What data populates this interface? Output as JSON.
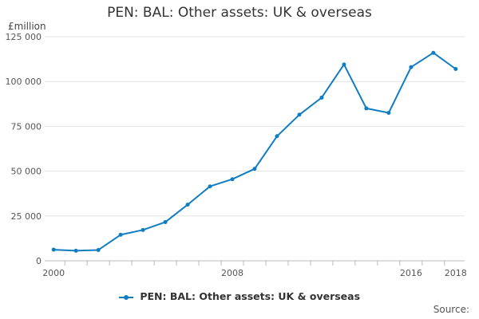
{
  "chart_data": {
    "type": "line",
    "title": "PEN: BAL: Other assets: UK & overseas",
    "y_unit": "£million",
    "x": [
      2000,
      2001,
      2002,
      2003,
      2004,
      2005,
      2006,
      2007,
      2008,
      2009,
      2010,
      2011,
      2012,
      2013,
      2014,
      2015,
      2016,
      2017,
      2018
    ],
    "x_tick_labels": [
      "2000",
      "2008",
      "2016",
      "2018"
    ],
    "series": [
      {
        "name": "PEN: BAL: Other assets: UK & overseas",
        "values": [
          6200,
          5600,
          6000,
          14500,
          17200,
          21600,
          31300,
          41500,
          45500,
          51300,
          69500,
          81500,
          91000,
          109500,
          85000,
          82500,
          108000,
          116000,
          107000
        ]
      }
    ],
    "ylim": [
      0,
      125000
    ],
    "y_ticks": [
      0,
      25000,
      50000,
      75000,
      100000,
      125000
    ],
    "y_tick_labels": [
      "0",
      "25 000",
      "50 000",
      "75 000",
      "100 000",
      "125 000"
    ],
    "grid": true,
    "legend_position": "bottom",
    "line_color": "#0f7dc2",
    "source_label": "Source:"
  }
}
